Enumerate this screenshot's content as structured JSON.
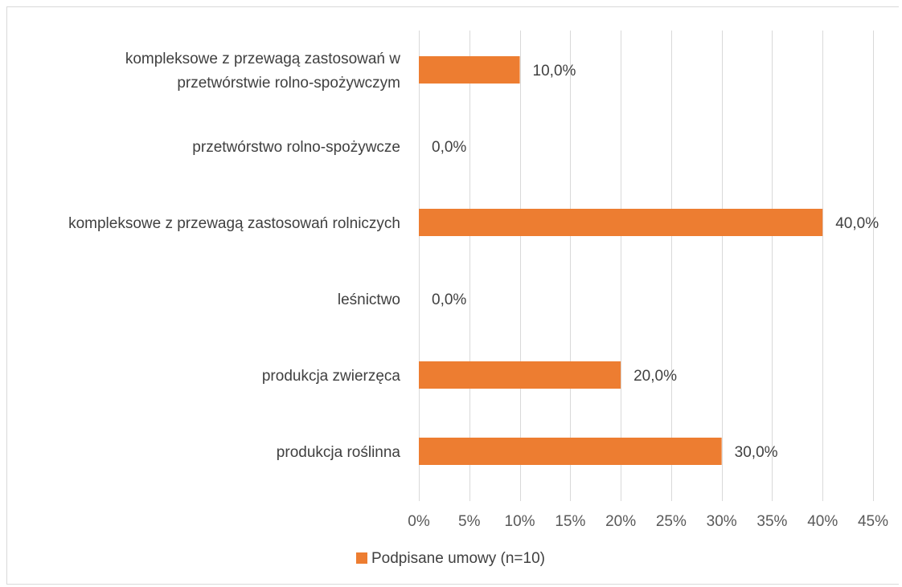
{
  "chart_data": {
    "type": "bar",
    "orientation": "horizontal",
    "categories": [
      "kompleksowe z przewagą zastosowań w przetwórstwie rolno-spożywczym",
      "przetwórstwo rolno-spożywcze",
      "kompleksowe z przewagą zastosowań rolniczych",
      "leśnictwo",
      "produkcja zwierzęca",
      "produkcja roślinna"
    ],
    "category_lines": [
      [
        "kompleksowe z przewagą zastosowań w",
        "przetwórstwie rolno-spożywczym"
      ],
      [
        "przetwórstwo rolno-spożywcze"
      ],
      [
        "kompleksowe z przewagą zastosowań rolniczych"
      ],
      [
        "leśnictwo"
      ],
      [
        "produkcja zwierzęca"
      ],
      [
        "produkcja roślinna"
      ]
    ],
    "series": [
      {
        "name": "Podpisane umowy (n=10)",
        "values": [
          10,
          0,
          40,
          0,
          20,
          30
        ],
        "color": "#ED7D31"
      }
    ],
    "data_labels": [
      "10,0%",
      "0,0%",
      "40,0%",
      "0,0%",
      "20,0%",
      "30,0%"
    ],
    "xlim": [
      0,
      45
    ],
    "xticks": [
      0,
      5,
      10,
      15,
      20,
      25,
      30,
      35,
      40,
      45
    ],
    "xtick_labels": [
      "0%",
      "5%",
      "10%",
      "15%",
      "20%",
      "25%",
      "30%",
      "35%",
      "40%",
      "45%"
    ],
    "grid": true,
    "grid_color": "#d9d9d9",
    "legend_position": "bottom",
    "title": "",
    "xlabel": "",
    "ylabel": ""
  }
}
